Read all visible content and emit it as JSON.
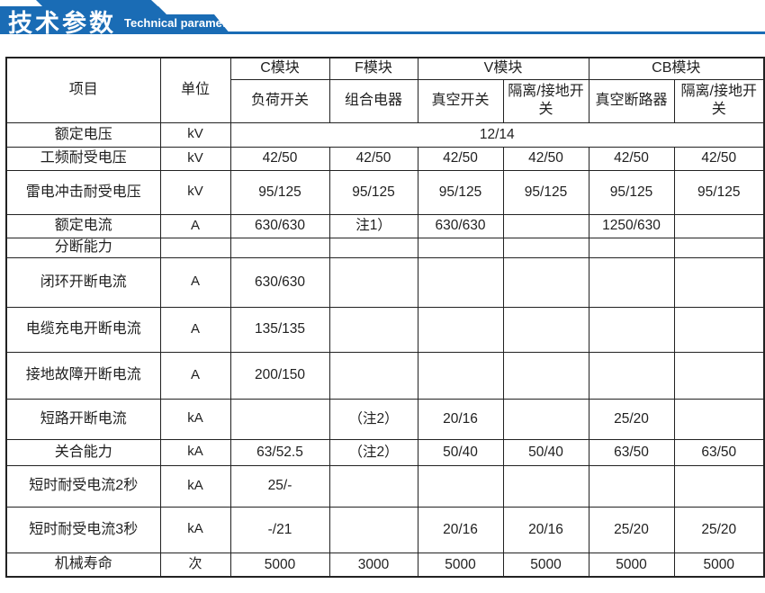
{
  "banner": {
    "title_cn": "技术参数",
    "title_en": "Technical parameter",
    "accent_color": "#1a6cb5"
  },
  "table": {
    "header": {
      "item_label": "项目",
      "unit_label": "单位",
      "modules": [
        {
          "name": "C模块",
          "subcols": [
            "负荷开关"
          ]
        },
        {
          "name": "F模块",
          "subcols": [
            "组合电器"
          ]
        },
        {
          "name": "V模块",
          "subcols": [
            "真空开关",
            "隔离/接地开关"
          ]
        },
        {
          "name": "CB模块",
          "subcols": [
            "真空断路器",
            "隔离/接地开关"
          ]
        }
      ]
    },
    "rows": [
      {
        "item": "额定电压",
        "unit": "kV",
        "merged": "12/14"
      },
      {
        "item": "工频耐受电压",
        "unit": "kV",
        "values": [
          "42/50",
          "42/50",
          "42/50",
          "42/50",
          "42/50",
          "42/50"
        ]
      },
      {
        "item": "雷电冲击耐受电压",
        "unit": "kV",
        "values": [
          "95/125",
          "95/125",
          "95/125",
          "95/125",
          "95/125",
          "95/125"
        ]
      },
      {
        "item": "额定电流",
        "unit": "A",
        "values": [
          "630/630",
          "注1）",
          "630/630",
          "",
          "1250/630",
          ""
        ]
      },
      {
        "item": "分断能力",
        "unit": "",
        "values": [
          "",
          "",
          "",
          "",
          "",
          ""
        ]
      },
      {
        "item": "闭环开断电流",
        "unit": "A",
        "values": [
          "630/630",
          "",
          "",
          "",
          "",
          ""
        ]
      },
      {
        "item": "电缆充电开断电流",
        "unit": "A",
        "values": [
          "135/135",
          "",
          "",
          "",
          "",
          ""
        ]
      },
      {
        "item": "接地故障开断电流",
        "unit": "A",
        "values": [
          "200/150",
          "",
          "",
          "",
          "",
          ""
        ]
      },
      {
        "item": "短路开断电流",
        "unit": "kA",
        "values": [
          "",
          "（注2）",
          "20/16",
          "",
          "25/20",
          ""
        ]
      },
      {
        "item": "关合能力",
        "unit": "kA",
        "values": [
          "63/52.5",
          "（注2）",
          "50/40",
          "50/40",
          "63/50",
          "63/50"
        ]
      },
      {
        "item": "短时耐受电流2秒",
        "unit": "kA",
        "values": [
          "25/-",
          "",
          "",
          "",
          "",
          ""
        ]
      },
      {
        "item": "短时耐受电流3秒",
        "unit": "kA",
        "values": [
          "-/21",
          "",
          "20/16",
          "20/16",
          "25/20",
          "25/20"
        ]
      },
      {
        "item": "机械寿命",
        "unit": "次",
        "values": [
          "5000",
          "3000",
          "5000",
          "5000",
          "5000",
          "5000"
        ]
      }
    ]
  }
}
